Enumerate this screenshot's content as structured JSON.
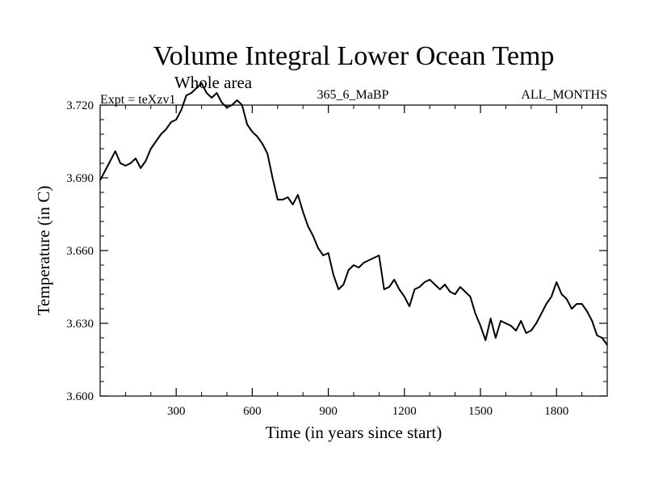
{
  "chart_data": {
    "type": "line",
    "title": "Volume Integral Lower Ocean Temp",
    "subtitle": "Whole area",
    "left_label": "Expt = teXzv1",
    "center_label": "365_6_MaBP",
    "right_label": "ALL_MONTHS",
    "xlabel": "Time (in years since start)",
    "ylabel": "Temperature (in C)",
    "xlim": [
      0,
      2000
    ],
    "ylim": [
      3.6,
      3.72
    ],
    "x_ticks": [
      300,
      600,
      900,
      1200,
      1500,
      1800
    ],
    "x_tick_labels": [
      "300",
      "600",
      "900",
      "1200",
      "1500",
      "1800"
    ],
    "y_ticks": [
      3.6,
      3.63,
      3.66,
      3.69,
      3.72
    ],
    "y_tick_labels": [
      "3.600",
      "3.630",
      "3.660",
      "3.690",
      "3.720"
    ],
    "series": [
      {
        "name": "temperature",
        "color": "#000000",
        "x": [
          0,
          20,
          40,
          60,
          80,
          100,
          120,
          140,
          160,
          180,
          200,
          220,
          240,
          260,
          280,
          300,
          320,
          340,
          360,
          380,
          400,
          420,
          440,
          460,
          480,
          500,
          520,
          540,
          560,
          580,
          600,
          620,
          640,
          660,
          680,
          700,
          720,
          740,
          760,
          780,
          800,
          820,
          840,
          860,
          880,
          900,
          920,
          940,
          960,
          980,
          1000,
          1020,
          1040,
          1060,
          1080,
          1100,
          1120,
          1140,
          1160,
          1180,
          1200,
          1220,
          1240,
          1260,
          1280,
          1300,
          1320,
          1340,
          1360,
          1380,
          1400,
          1420,
          1440,
          1460,
          1480,
          1500,
          1520,
          1540,
          1560,
          1580,
          1600,
          1620,
          1640,
          1660,
          1680,
          1700,
          1720,
          1740,
          1760,
          1780,
          1800,
          1820,
          1840,
          1860,
          1880,
          1900,
          1920,
          1940,
          1960,
          1980,
          2000
        ],
        "values": [
          3.689,
          3.693,
          3.697,
          3.701,
          3.696,
          3.695,
          3.696,
          3.698,
          3.694,
          3.697,
          3.702,
          3.705,
          3.708,
          3.71,
          3.713,
          3.714,
          3.718,
          3.724,
          3.725,
          3.727,
          3.729,
          3.725,
          3.723,
          3.725,
          3.721,
          3.719,
          3.72,
          3.722,
          3.72,
          3.712,
          3.709,
          3.707,
          3.704,
          3.7,
          3.69,
          3.681,
          3.681,
          3.682,
          3.679,
          3.683,
          3.676,
          3.67,
          3.666,
          3.661,
          3.658,
          3.659,
          3.65,
          3.644,
          3.646,
          3.652,
          3.654,
          3.653,
          3.655,
          3.656,
          3.657,
          3.658,
          3.644,
          3.645,
          3.648,
          3.644,
          3.641,
          3.637,
          3.644,
          3.645,
          3.647,
          3.648,
          3.646,
          3.644,
          3.646,
          3.643,
          3.642,
          3.645,
          3.643,
          3.641,
          3.634,
          3.629,
          3.623,
          3.632,
          3.624,
          3.631,
          3.63,
          3.629,
          3.627,
          3.631,
          3.626,
          3.627,
          3.63,
          3.634,
          3.638,
          3.641,
          3.647,
          3.642,
          3.64,
          3.636,
          3.638,
          3.638,
          3.635,
          3.631,
          3.625,
          3.624,
          3.621
        ]
      }
    ]
  }
}
